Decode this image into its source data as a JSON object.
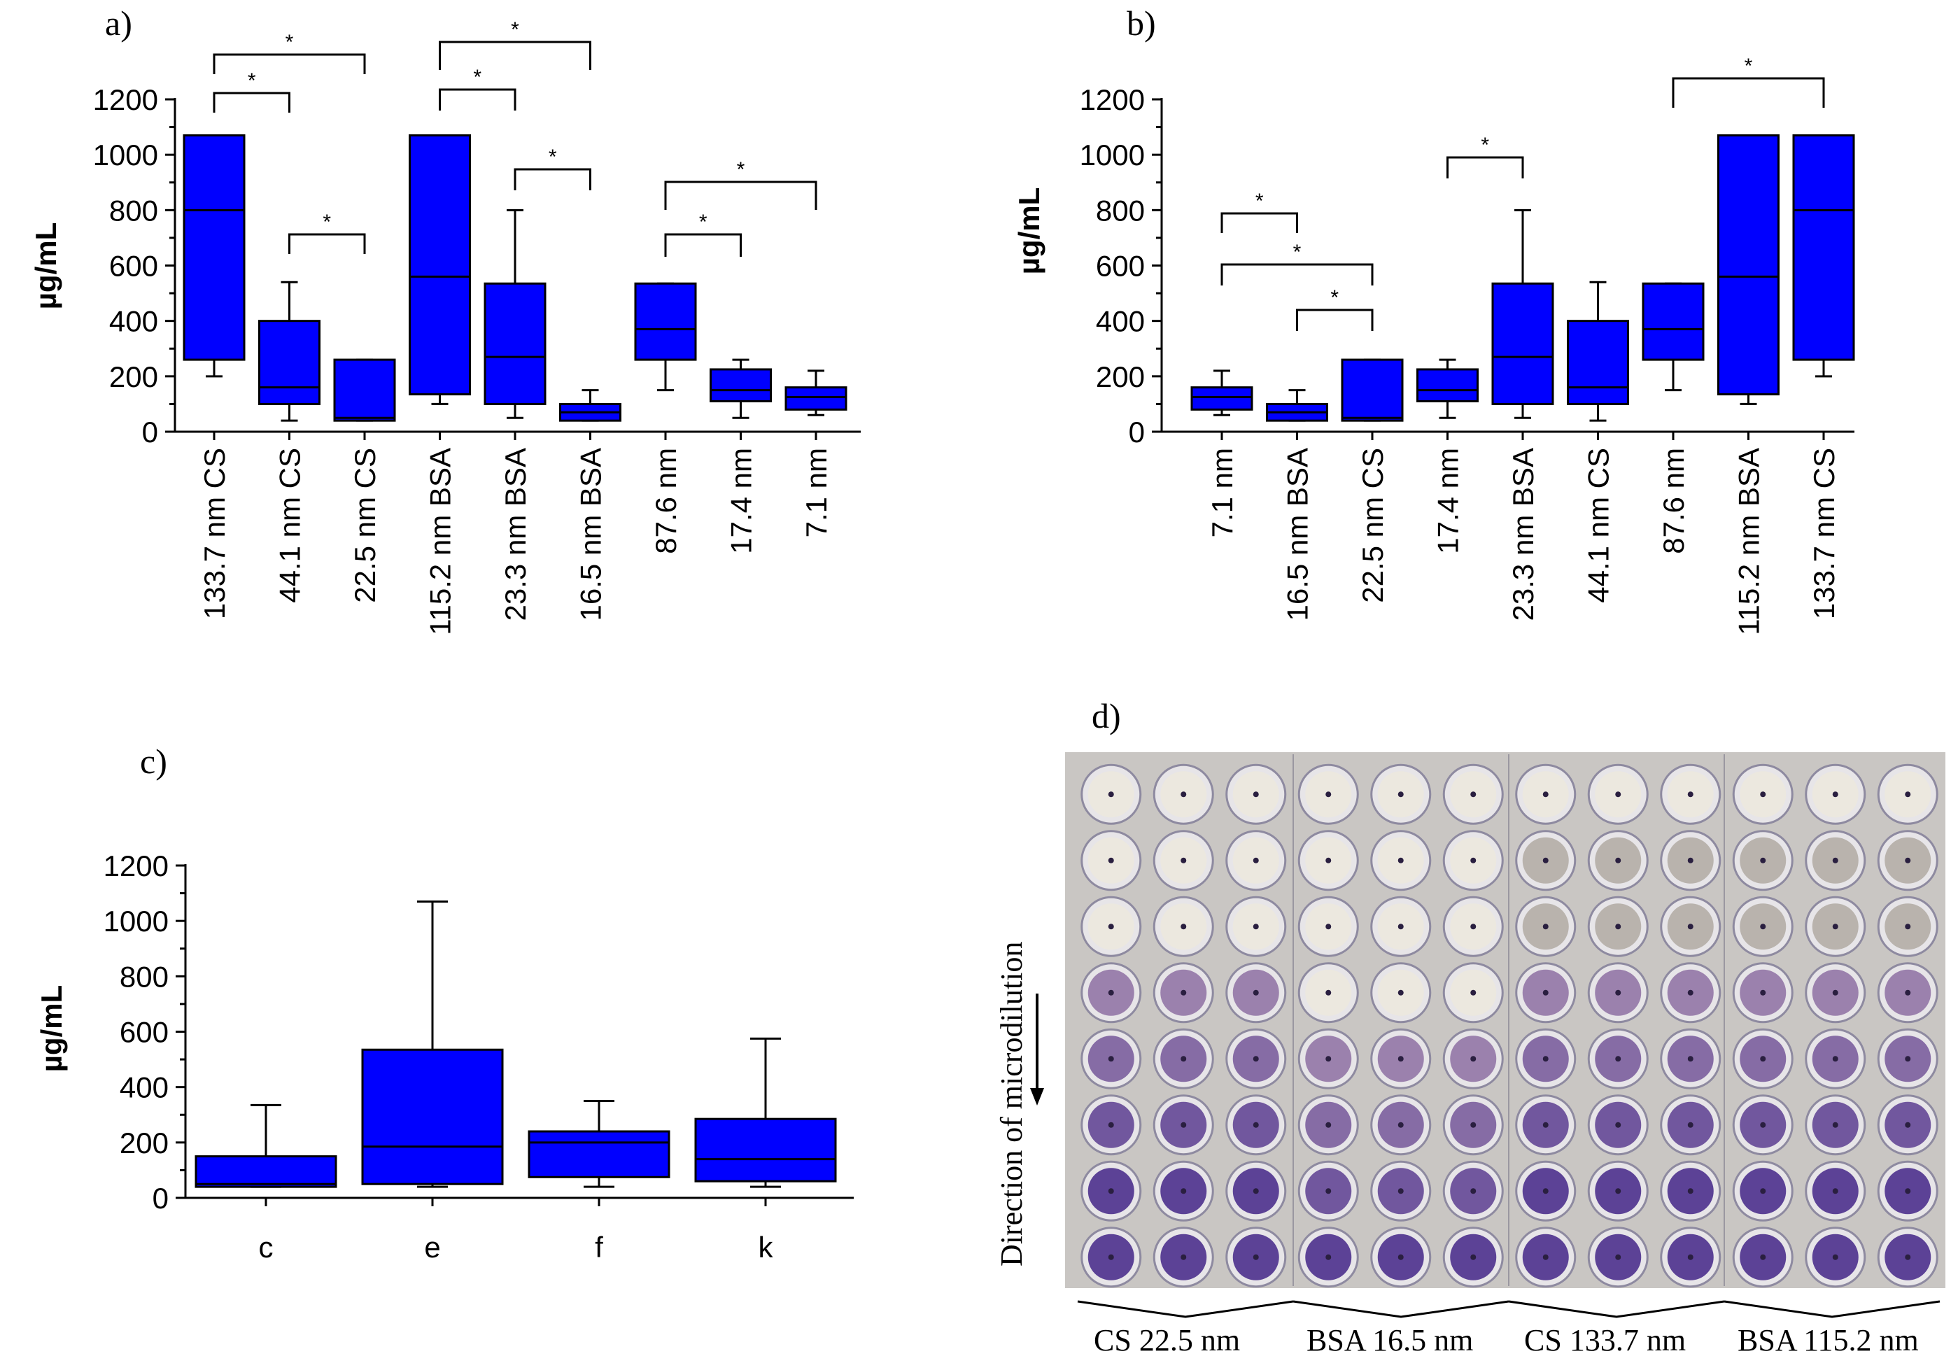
{
  "chart_data": [
    {
      "type": "box",
      "panel_label": "a)",
      "ylabel": "µg/mL",
      "ylim": [
        0,
        1200
      ],
      "yticks": [
        "0",
        "200",
        "400",
        "600",
        "800",
        "1000",
        "1200"
      ],
      "categories": [
        "133.7 nm CS",
        "44.1 nm CS",
        "22.5 nm CS",
        "115.2 nm BSA",
        "23.3 nm BSA",
        "16.5 nm BSA",
        "87.6 nm",
        "17.4 nm",
        "7.1 nm"
      ],
      "boxes": [
        {
          "whisker_low": 200,
          "q1": 260,
          "median": 800,
          "q3": 1070,
          "whisker_high": 1070
        },
        {
          "whisker_low": 40,
          "q1": 100,
          "median": 160,
          "q3": 400,
          "whisker_high": 540
        },
        {
          "whisker_low": 40,
          "q1": 40,
          "median": 50,
          "q3": 260,
          "whisker_high": 260
        },
        {
          "whisker_low": 100,
          "q1": 135,
          "median": 560,
          "q3": 1070,
          "whisker_high": 1070
        },
        {
          "whisker_low": 50,
          "q1": 100,
          "median": 270,
          "q3": 535,
          "whisker_high": 800
        },
        {
          "whisker_low": 40,
          "q1": 40,
          "median": 70,
          "q3": 100,
          "whisker_high": 150
        },
        {
          "whisker_low": 150,
          "q1": 260,
          "median": 370,
          "q3": 535,
          "whisker_high": 535
        },
        {
          "whisker_low": 50,
          "q1": 110,
          "median": 150,
          "q3": 225,
          "whisker_high": 260
        },
        {
          "whisker_low": 60,
          "q1": 80,
          "median": 125,
          "q3": 160,
          "whisker_high": 220
        }
      ],
      "significance": [
        {
          "from": 0,
          "to": 2,
          "level": 1,
          "label": "*"
        },
        {
          "from": 0,
          "to": 1,
          "level": 0,
          "label": "*"
        },
        {
          "from": 1,
          "to": 2,
          "level": -1,
          "label": "*"
        },
        {
          "from": 3,
          "to": 5,
          "level": 1,
          "label": "*"
        },
        {
          "from": 3,
          "to": 4,
          "level": 0,
          "label": "*"
        },
        {
          "from": 4,
          "to": 5,
          "level": -1,
          "label": "*"
        },
        {
          "from": 6,
          "to": 8,
          "level": 0,
          "label": "*"
        },
        {
          "from": 6,
          "to": 7,
          "level": -1,
          "label": "*"
        }
      ]
    },
    {
      "type": "box",
      "panel_label": "b)",
      "ylabel": "µg/mL",
      "ylim": [
        0,
        1200
      ],
      "yticks": [
        "0",
        "200",
        "400",
        "600",
        "800",
        "1000",
        "1200"
      ],
      "categories": [
        "7.1 nm",
        "16.5 nm BSA",
        "22.5 nm CS",
        "17.4 nm",
        "23.3 nm BSA",
        "44.1 nm CS",
        "87.6 nm",
        "115.2 nm BSA",
        "133.7 nm CS"
      ],
      "boxes": [
        {
          "whisker_low": 60,
          "q1": 80,
          "median": 125,
          "q3": 160,
          "whisker_high": 220
        },
        {
          "whisker_low": 40,
          "q1": 40,
          "median": 70,
          "q3": 100,
          "whisker_high": 150
        },
        {
          "whisker_low": 40,
          "q1": 40,
          "median": 50,
          "q3": 260,
          "whisker_high": 260
        },
        {
          "whisker_low": 50,
          "q1": 110,
          "median": 150,
          "q3": 225,
          "whisker_high": 260
        },
        {
          "whisker_low": 50,
          "q1": 100,
          "median": 270,
          "q3": 535,
          "whisker_high": 800
        },
        {
          "whisker_low": 40,
          "q1": 100,
          "median": 160,
          "q3": 400,
          "whisker_high": 540
        },
        {
          "whisker_low": 150,
          "q1": 260,
          "median": 370,
          "q3": 535,
          "whisker_high": 535
        },
        {
          "whisker_low": 100,
          "q1": 135,
          "median": 560,
          "q3": 1070,
          "whisker_high": 1070
        },
        {
          "whisker_low": 200,
          "q1": 260,
          "median": 800,
          "q3": 1070,
          "whisker_high": 1070
        }
      ],
      "significance": [
        {
          "from": 0,
          "to": 1,
          "level": 2,
          "label": "*"
        },
        {
          "from": 0,
          "to": 2,
          "level": 1,
          "label": "*"
        },
        {
          "from": 1,
          "to": 2,
          "level": 0,
          "label": "*"
        },
        {
          "from": 3,
          "to": 4,
          "level": 2,
          "label": "*"
        },
        {
          "from": 6,
          "to": 8,
          "level": 3,
          "label": "*"
        }
      ]
    },
    {
      "type": "box",
      "panel_label": "c)",
      "ylabel": "µg/mL",
      "ylim": [
        0,
        1200
      ],
      "yticks": [
        "0",
        "200",
        "400",
        "600",
        "800",
        "1000",
        "1200"
      ],
      "categories": [
        "c",
        "e",
        "f",
        "k"
      ],
      "boxes": [
        {
          "whisker_low": 40,
          "q1": 40,
          "median": 50,
          "q3": 150,
          "whisker_high": 335
        },
        {
          "whisker_low": 40,
          "q1": 50,
          "median": 185,
          "q3": 535,
          "whisker_high": 1070
        },
        {
          "whisker_low": 40,
          "q1": 75,
          "median": 200,
          "q3": 240,
          "whisker_high": 350
        },
        {
          "whisker_low": 40,
          "q1": 60,
          "median": 140,
          "q3": 285,
          "whisker_high": 575
        }
      ],
      "significance": []
    }
  ],
  "panel_d": {
    "label": "d)",
    "direction_text": "Direction of microdilution",
    "group_labels": [
      "CS 22.5 nm",
      "BSA 16.5 nm",
      "CS 133.7 nm",
      "BSA 115.2 nm"
    ]
  }
}
